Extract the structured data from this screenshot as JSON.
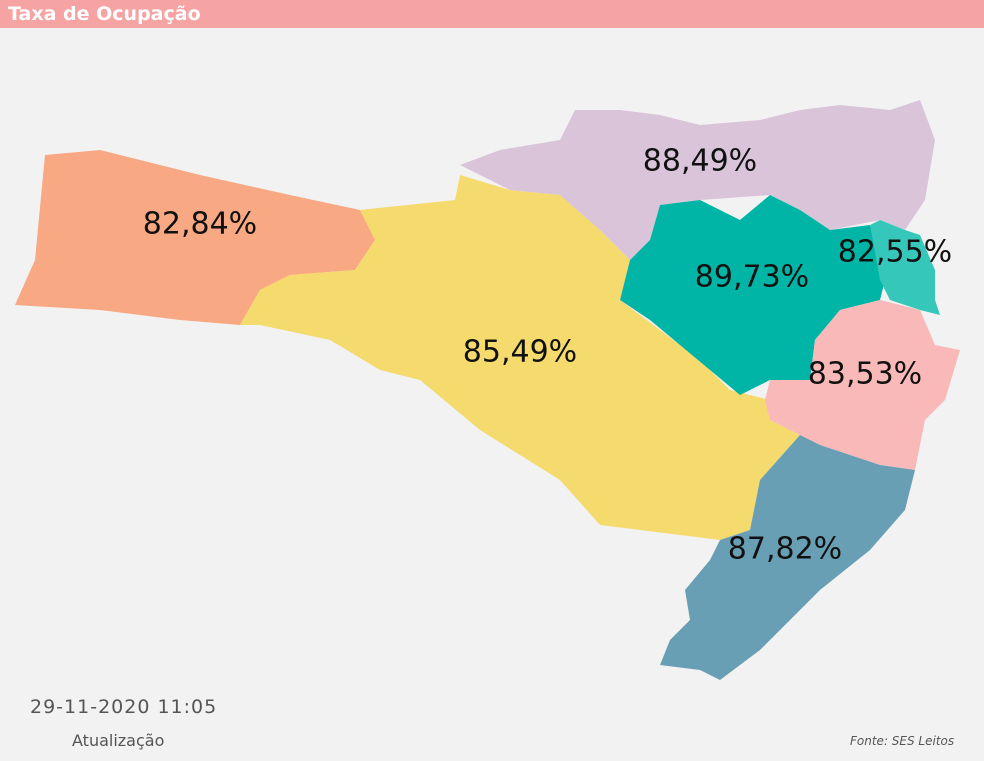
{
  "header": {
    "title": "Taxa de Ocupação"
  },
  "regions": [
    {
      "label": "82,84%",
      "color": "#f8a882"
    },
    {
      "label": "85,49%",
      "color": "#f5da6e"
    },
    {
      "label": "88,49%",
      "color": "#d9c4d9"
    },
    {
      "label": "89,73%",
      "color": "#00b5a5"
    },
    {
      "label": "82,55%",
      "color": "#36c7bb"
    },
    {
      "label": "83,53%",
      "color": "#f9b9b9"
    },
    {
      "label": "87,82%",
      "color": "#699fb4"
    }
  ],
  "footer": {
    "timestamp": "29-11-2020 11:05",
    "timestamp_caption": "Atualização",
    "source": "Fonte: SES Leitos"
  }
}
